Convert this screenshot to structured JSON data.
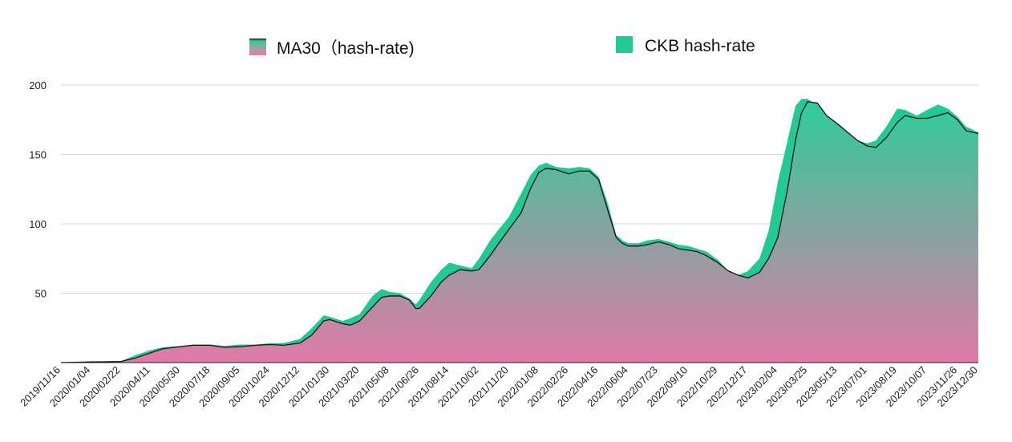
{
  "chart_data": {
    "type": "area",
    "ylim": [
      0,
      200
    ],
    "y_ticks": [
      50,
      100,
      150,
      200
    ],
    "grid": true,
    "legend_placement": "top",
    "x_dates": [
      "2019/11/16",
      "2020/01/04",
      "2020/02/22",
      "2020/04/11",
      "2020/05/30",
      "2020/07/18",
      "2020/09/05",
      "2020/10/24",
      "2020/12/12",
      "2021/01/30",
      "2021/03/20",
      "2021/05/08",
      "2021/06/26",
      "2021/08/14",
      "2021/10/02",
      "2021/11/20",
      "2022/01/08",
      "2022/02/26",
      "2022/04/16",
      "2022/06/04",
      "2022/07/23",
      "2022/09/10",
      "2022/10/29",
      "2022/12/17",
      "2023/02/04",
      "2023/03/25",
      "2023/05/13",
      "2023/07/01",
      "2023/08/19",
      "2023/10/07",
      "2023/11/26",
      "2023/12/30"
    ],
    "series": [
      {
        "name": "MA30（hash-rate)",
        "style": "line-with-gradient-fill",
        "fill_top_color": "#2ecc9a",
        "fill_bottom_color": "#e07aa8",
        "line_color": "#111111",
        "points": [
          [
            "2019/11/16",
            0
          ],
          [
            "2019/12/15",
            0.3
          ],
          [
            "2020/01/04",
            0.5
          ],
          [
            "2020/02/01",
            0.6
          ],
          [
            "2020/02/22",
            0.8
          ],
          [
            "2020/03/15",
            3
          ],
          [
            "2020/04/11",
            7
          ],
          [
            "2020/05/01",
            10
          ],
          [
            "2020/05/30",
            11.5
          ],
          [
            "2020/06/20",
            12.5
          ],
          [
            "2020/07/18",
            12.5
          ],
          [
            "2020/08/10",
            11
          ],
          [
            "2020/09/05",
            11.5
          ],
          [
            "2020/10/01",
            12.5
          ],
          [
            "2020/10/24",
            13
          ],
          [
            "2020/11/15",
            12.5
          ],
          [
            "2020/12/12",
            14
          ],
          [
            "2021/01/01",
            20
          ],
          [
            "2021/01/20",
            30
          ],
          [
            "2021/01/30",
            31
          ],
          [
            "2021/02/20",
            28
          ],
          [
            "2021/03/05",
            27
          ],
          [
            "2021/03/20",
            30
          ],
          [
            "2021/04/10",
            40
          ],
          [
            "2021/04/25",
            47
          ],
          [
            "2021/05/08",
            48
          ],
          [
            "2021/05/25",
            48
          ],
          [
            "2021/06/10",
            45
          ],
          [
            "2021/06/20",
            39
          ],
          [
            "2021/06/26",
            39
          ],
          [
            "2021/07/15",
            48
          ],
          [
            "2021/08/01",
            58
          ],
          [
            "2021/08/14",
            63
          ],
          [
            "2021/09/01",
            67
          ],
          [
            "2021/09/20",
            66
          ],
          [
            "2021/10/02",
            67
          ],
          [
            "2021/10/20",
            77
          ],
          [
            "2021/11/05",
            87
          ],
          [
            "2021/11/20",
            96
          ],
          [
            "2021/12/10",
            108
          ],
          [
            "2021/12/25",
            125
          ],
          [
            "2022/01/08",
            137
          ],
          [
            "2022/01/20",
            140
          ],
          [
            "2022/02/05",
            139
          ],
          [
            "2022/02/26",
            136
          ],
          [
            "2022/03/15",
            138
          ],
          [
            "2022/04/01",
            138
          ],
          [
            "2022/04/16",
            132
          ],
          [
            "2022/05/01",
            110
          ],
          [
            "2022/05/15",
            90
          ],
          [
            "2022/05/25",
            86
          ],
          [
            "2022/06/04",
            84
          ],
          [
            "2022/06/20",
            84
          ],
          [
            "2022/07/05",
            85
          ],
          [
            "2022/07/23",
            87
          ],
          [
            "2022/08/10",
            85
          ],
          [
            "2022/08/25",
            82
          ],
          [
            "2022/09/10",
            81
          ],
          [
            "2022/09/25",
            80
          ],
          [
            "2022/10/10",
            77
          ],
          [
            "2022/10/29",
            72
          ],
          [
            "2022/11/15",
            66
          ],
          [
            "2022/12/01",
            63
          ],
          [
            "2022/12/17",
            61
          ],
          [
            "2023/01/05",
            65
          ],
          [
            "2023/01/20",
            75
          ],
          [
            "2023/02/04",
            90
          ],
          [
            "2023/02/20",
            125
          ],
          [
            "2023/03/05",
            160
          ],
          [
            "2023/03/15",
            180
          ],
          [
            "2023/03/25",
            188
          ],
          [
            "2023/04/10",
            187
          ],
          [
            "2023/04/25",
            178
          ],
          [
            "2023/05/13",
            172
          ],
          [
            "2023/06/01",
            165
          ],
          [
            "2023/06/15",
            160
          ],
          [
            "2023/07/01",
            156
          ],
          [
            "2023/07/15",
            155
          ],
          [
            "2023/08/01",
            162
          ],
          [
            "2023/08/19",
            173
          ],
          [
            "2023/09/01",
            178
          ],
          [
            "2023/09/20",
            176
          ],
          [
            "2023/10/07",
            176
          ],
          [
            "2023/10/25",
            178
          ],
          [
            "2023/11/10",
            180
          ],
          [
            "2023/11/26",
            175
          ],
          [
            "2023/12/10",
            167
          ],
          [
            "2023/12/30",
            165
          ]
        ]
      },
      {
        "name": "CKB hash-rate",
        "style": "area",
        "color": "#22c993",
        "points": [
          [
            "2019/11/16",
            0
          ],
          [
            "2019/12/15",
            0.3
          ],
          [
            "2020/01/04",
            0.5
          ],
          [
            "2020/02/01",
            0.6
          ],
          [
            "2020/02/22",
            0.9
          ],
          [
            "2020/03/15",
            5
          ],
          [
            "2020/04/11",
            9
          ],
          [
            "2020/05/01",
            11
          ],
          [
            "2020/05/30",
            12
          ],
          [
            "2020/06/20",
            13
          ],
          [
            "2020/07/18",
            13
          ],
          [
            "2020/08/10",
            12
          ],
          [
            "2020/09/05",
            13
          ],
          [
            "2020/10/01",
            13
          ],
          [
            "2020/10/24",
            14
          ],
          [
            "2020/11/15",
            14
          ],
          [
            "2020/12/12",
            17
          ],
          [
            "2021/01/01",
            25
          ],
          [
            "2021/01/20",
            34
          ],
          [
            "2021/01/30",
            33
          ],
          [
            "2021/02/20",
            30
          ],
          [
            "2021/03/05",
            32
          ],
          [
            "2021/03/20",
            35
          ],
          [
            "2021/04/10",
            48
          ],
          [
            "2021/04/25",
            53
          ],
          [
            "2021/05/08",
            51
          ],
          [
            "2021/05/25",
            50
          ],
          [
            "2021/06/10",
            46
          ],
          [
            "2021/06/20",
            42
          ],
          [
            "2021/06/26",
            45
          ],
          [
            "2021/07/15",
            58
          ],
          [
            "2021/08/01",
            67
          ],
          [
            "2021/08/14",
            72
          ],
          [
            "2021/09/01",
            70
          ],
          [
            "2021/09/20",
            68
          ],
          [
            "2021/10/02",
            75
          ],
          [
            "2021/10/20",
            88
          ],
          [
            "2021/11/05",
            97
          ],
          [
            "2021/11/20",
            105
          ],
          [
            "2021/12/10",
            122
          ],
          [
            "2021/12/25",
            135
          ],
          [
            "2022/01/08",
            142
          ],
          [
            "2022/01/20",
            144
          ],
          [
            "2022/02/05",
            141
          ],
          [
            "2022/02/26",
            140
          ],
          [
            "2022/03/15",
            141
          ],
          [
            "2022/04/01",
            140
          ],
          [
            "2022/04/16",
            134
          ],
          [
            "2022/05/01",
            115
          ],
          [
            "2022/05/15",
            92
          ],
          [
            "2022/05/25",
            88
          ],
          [
            "2022/06/04",
            86
          ],
          [
            "2022/06/20",
            86
          ],
          [
            "2022/07/05",
            88
          ],
          [
            "2022/07/23",
            89
          ],
          [
            "2022/08/10",
            87
          ],
          [
            "2022/08/25",
            85
          ],
          [
            "2022/09/10",
            84
          ],
          [
            "2022/09/25",
            82
          ],
          [
            "2022/10/10",
            80
          ],
          [
            "2022/10/29",
            74
          ],
          [
            "2022/11/15",
            66
          ],
          [
            "2022/12/01",
            63
          ],
          [
            "2022/12/17",
            66
          ],
          [
            "2023/01/05",
            75
          ],
          [
            "2023/01/20",
            95
          ],
          [
            "2023/02/04",
            130
          ],
          [
            "2023/02/20",
            160
          ],
          [
            "2023/03/05",
            185
          ],
          [
            "2023/03/15",
            190
          ],
          [
            "2023/03/25",
            190
          ],
          [
            "2023/04/10",
            185
          ],
          [
            "2023/04/25",
            176
          ],
          [
            "2023/05/13",
            172
          ],
          [
            "2023/06/01",
            165
          ],
          [
            "2023/06/15",
            160
          ],
          [
            "2023/07/01",
            158
          ],
          [
            "2023/07/15",
            160
          ],
          [
            "2023/08/01",
            170
          ],
          [
            "2023/08/19",
            183
          ],
          [
            "2023/09/01",
            182
          ],
          [
            "2023/09/20",
            178
          ],
          [
            "2023/10/07",
            182
          ],
          [
            "2023/10/25",
            186
          ],
          [
            "2023/11/10",
            183
          ],
          [
            "2023/11/26",
            177
          ],
          [
            "2023/12/10",
            170
          ],
          [
            "2023/12/30",
            166
          ]
        ]
      }
    ]
  }
}
